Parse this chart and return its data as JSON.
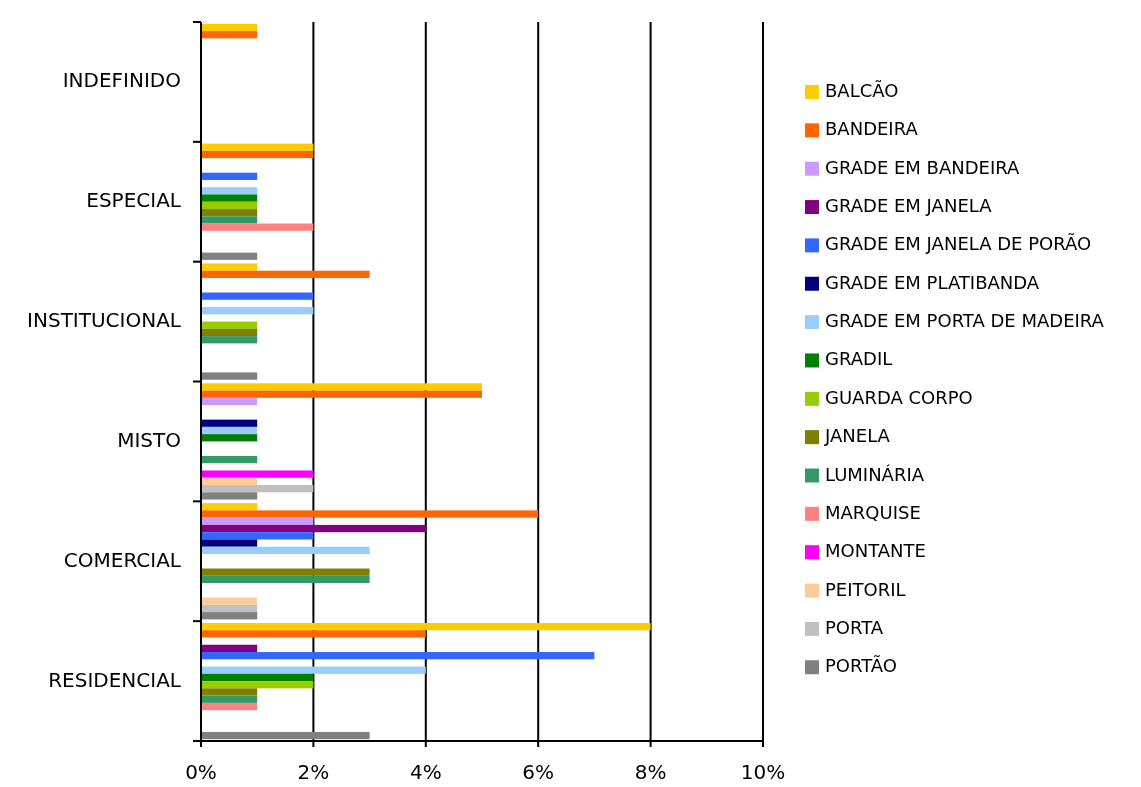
{
  "chart_data": {
    "type": "bar",
    "orientation": "horizontal",
    "categories": [
      "INDEFINIDO",
      "ESPECIAL",
      "INSTITUCIONAL",
      "MISTO",
      "COMERCIAL",
      "RESIDENCIAL"
    ],
    "xlim": [
      0,
      10
    ],
    "xticks": [
      {
        "value": 0,
        "label": "0%"
      },
      {
        "value": 2,
        "label": "2%"
      },
      {
        "value": 4,
        "label": "4%"
      },
      {
        "value": 6,
        "label": "6%"
      },
      {
        "value": 8,
        "label": "8%"
      },
      {
        "value": 10,
        "label": "10%"
      }
    ],
    "grid": "x",
    "legend": "right",
    "series": [
      {
        "name": "BALCÃO",
        "color": "#ffcc00",
        "values": [
          1,
          2,
          1,
          5,
          1,
          8
        ]
      },
      {
        "name": "BANDEIRA",
        "color": "#ff6600",
        "values": [
          1,
          2,
          3,
          5,
          6,
          4
        ]
      },
      {
        "name": "GRADE EM BANDEIRA",
        "color": "#cc99ff",
        "values": [
          null,
          null,
          null,
          1,
          2,
          null
        ]
      },
      {
        "name": "GRADE EM JANELA",
        "color": "#800080",
        "values": [
          null,
          null,
          null,
          null,
          4,
          1
        ]
      },
      {
        "name": "GRADE EM JANELA DE PORÃO",
        "color": "#3366ff",
        "values": [
          null,
          1,
          2,
          null,
          2,
          7
        ]
      },
      {
        "name": "GRADE EM PLATIBANDA",
        "color": "#000080",
        "values": [
          null,
          null,
          null,
          1,
          1,
          null
        ]
      },
      {
        "name": "GRADE EM PORTA DE MADEIRA",
        "color": "#99ccff",
        "values": [
          null,
          1,
          2,
          1,
          3,
          4
        ]
      },
      {
        "name": "GRADIL",
        "color": "#008000",
        "values": [
          null,
          1,
          null,
          1,
          null,
          2
        ]
      },
      {
        "name": "GUARDA CORPO",
        "color": "#99cc00",
        "values": [
          null,
          1,
          1,
          null,
          null,
          2
        ]
      },
      {
        "name": "JANELA",
        "color": "#808000",
        "values": [
          null,
          1,
          1,
          null,
          3,
          1
        ]
      },
      {
        "name": "LUMINÁRIA",
        "color": "#339966",
        "values": [
          null,
          1,
          1,
          1,
          3,
          1
        ]
      },
      {
        "name": "MARQUISE",
        "color": "#ff8080",
        "values": [
          null,
          2,
          null,
          null,
          null,
          1
        ]
      },
      {
        "name": "MONTANTE",
        "color": "#ff00ff",
        "values": [
          null,
          null,
          null,
          2,
          null,
          null
        ]
      },
      {
        "name": "PEITORIL",
        "color": "#ffcc99",
        "values": [
          null,
          null,
          null,
          1,
          1,
          null
        ]
      },
      {
        "name": "PORTA",
        "color": "#c0c0c0",
        "values": [
          null,
          null,
          null,
          2,
          1,
          null
        ]
      },
      {
        "name": "PORTÃO",
        "color": "#808080",
        "values": [
          null,
          1,
          1,
          1,
          1,
          3
        ]
      }
    ]
  }
}
